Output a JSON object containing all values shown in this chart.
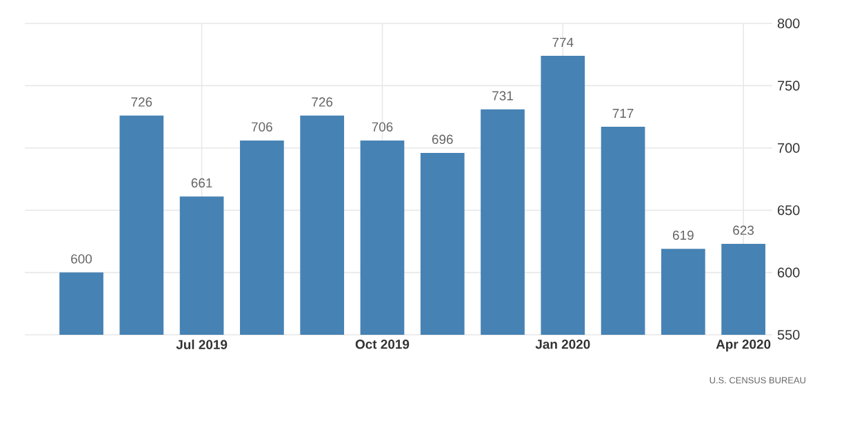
{
  "chart_data": {
    "type": "bar",
    "categories": [
      null,
      null,
      "Jul 2019",
      null,
      null,
      "Oct 2019",
      null,
      null,
      "Jan 2020",
      null,
      null,
      "Apr 2020"
    ],
    "values": [
      600,
      726,
      661,
      706,
      726,
      706,
      696,
      731,
      774,
      717,
      619,
      623
    ],
    "color": "#4682b4",
    "ylim": [
      550,
      800
    ],
    "yticks": [
      550,
      600,
      650,
      700,
      750,
      800
    ],
    "grid": true,
    "data_labels": true,
    "annotations": [
      "U.S. CENSUS BUREAU"
    ]
  }
}
